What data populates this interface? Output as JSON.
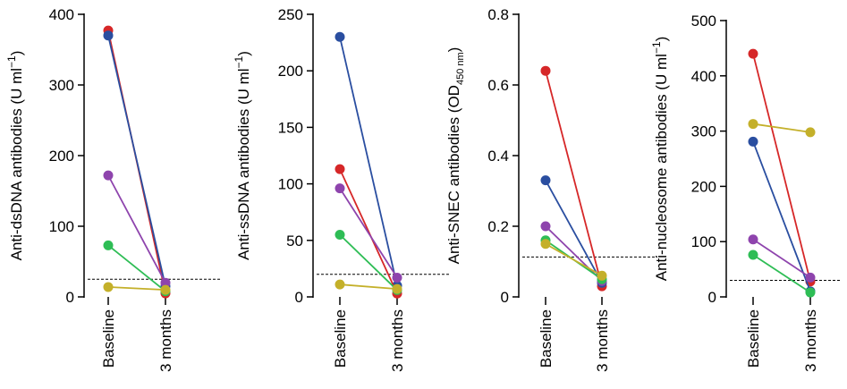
{
  "chart_data": [
    {
      "type": "line",
      "categories": [
        "Baseline",
        "3 months"
      ],
      "ylabel_parts": [
        "Anti-dsDNA antibodies (U ml",
        "−1",
        ")"
      ],
      "ylim": [
        0,
        400
      ],
      "yticks": [
        "0",
        "100",
        "200",
        "300",
        "400"
      ],
      "threshold": 25,
      "series": [
        {
          "color": "#d62728",
          "values": [
            377,
            5
          ]
        },
        {
          "color": "#2a4ea0",
          "values": [
            370,
            15
          ]
        },
        {
          "color": "#8e44ad",
          "values": [
            172,
            20
          ]
        },
        {
          "color": "#2ebd55",
          "values": [
            73,
            8
          ]
        },
        {
          "color": "#c4b02a",
          "values": [
            14,
            10
          ]
        }
      ]
    },
    {
      "type": "line",
      "categories": [
        "Baseline",
        "3 months"
      ],
      "ylabel_parts": [
        "Anti-ssDNA antibodies (U ml",
        "−1",
        ")"
      ],
      "ylim": [
        0,
        250
      ],
      "yticks": [
        "0",
        "50",
        "100",
        "150",
        "200",
        "250"
      ],
      "threshold": 20,
      "series": [
        {
          "color": "#2a4ea0",
          "values": [
            230,
            10
          ]
        },
        {
          "color": "#d62728",
          "values": [
            113,
            3
          ]
        },
        {
          "color": "#8e44ad",
          "values": [
            96,
            17
          ]
        },
        {
          "color": "#2ebd55",
          "values": [
            55,
            6
          ]
        },
        {
          "color": "#c4b02a",
          "values": [
            11,
            7
          ]
        }
      ]
    },
    {
      "type": "line",
      "categories": [
        "Baseline",
        "3 months"
      ],
      "ylabel_parts": [
        "Anti-SNEC antibodies (OD",
        "450 nm",
        ")"
      ],
      "ylim": [
        0,
        0.8
      ],
      "yticks": [
        "0",
        "0.2",
        "0.4",
        "0.6",
        "0.8"
      ],
      "threshold": 0.113,
      "series": [
        {
          "color": "#d62728",
          "values": [
            0.64,
            0.03
          ]
        },
        {
          "color": "#2a4ea0",
          "values": [
            0.33,
            0.04
          ]
        },
        {
          "color": "#8e44ad",
          "values": [
            0.2,
            0.045
          ]
        },
        {
          "color": "#2ebd55",
          "values": [
            0.16,
            0.05
          ]
        },
        {
          "color": "#c4b02a",
          "values": [
            0.15,
            0.06
          ]
        }
      ]
    },
    {
      "type": "line",
      "categories": [
        "Baseline",
        "3 months"
      ],
      "ylabel_parts": [
        "Anti-nucleosome antibodies (U ml",
        "−1",
        ")"
      ],
      "ylim": [
        0,
        500
      ],
      "yticks": [
        "0",
        "100",
        "200",
        "300",
        "400",
        "500"
      ],
      "threshold": 30,
      "series": [
        {
          "color": "#d62728",
          "values": [
            440,
            28
          ]
        },
        {
          "color": "#c4b02a",
          "values": [
            313,
            298
          ]
        },
        {
          "color": "#2a4ea0",
          "values": [
            281,
            10
          ]
        },
        {
          "color": "#8e44ad",
          "values": [
            104,
            35
          ]
        },
        {
          "color": "#2ebd55",
          "values": [
            76,
            8
          ]
        }
      ]
    }
  ]
}
